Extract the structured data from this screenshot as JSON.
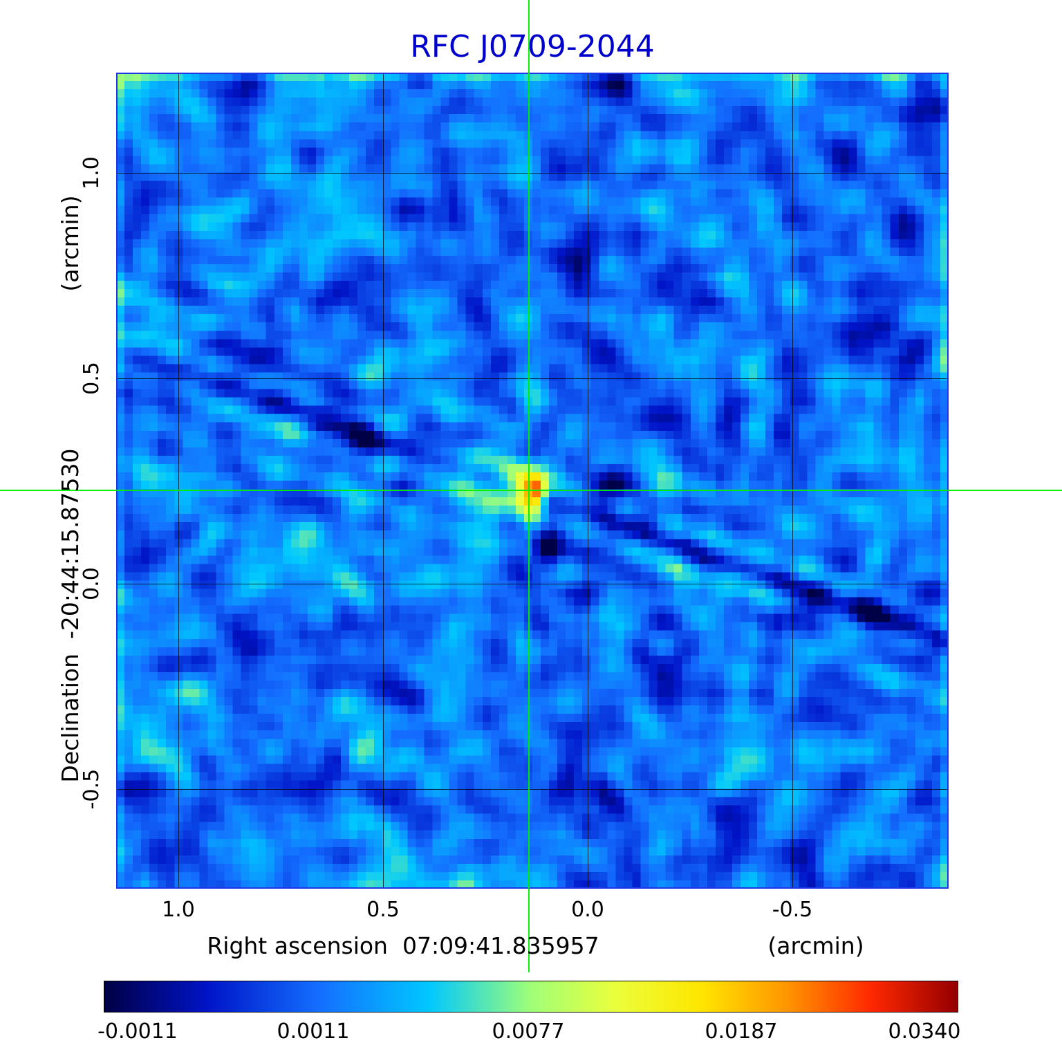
{
  "title": "RFC J0709-2044",
  "colors": {
    "title": "#0000cc",
    "crosshair": "#00ee00",
    "grid": "#000000",
    "frame": "#1e35e8",
    "background": "#ffffff",
    "text": "#000000"
  },
  "x_axis": {
    "label": "Right ascension  07:09:41.835957",
    "unit": "(arcmin)",
    "ticks": [
      "1.0",
      "0.5",
      "0.0",
      "-0.5"
    ]
  },
  "y_axis": {
    "label": "Declination  -20:44:15.87530",
    "unit": "(arcmin)",
    "ticks": [
      "1.0",
      "0.5",
      "0.0",
      "-0.5"
    ]
  },
  "colorbar": {
    "tick_labels": [
      "-0.0011",
      "0.0011",
      "0.0077",
      "0.0187",
      "0.0340"
    ]
  },
  "chart_data": {
    "type": "heatmap",
    "title": "RFC J0709-2044",
    "xlabel": "Right ascension 07:09:41.835957 (arcmin)",
    "ylabel": "Declination -20:44:15.87530 (arcmin)",
    "x_ticks": [
      1.0,
      0.5,
      0.0,
      -0.5
    ],
    "y_ticks": [
      1.0,
      0.5,
      0.0,
      -0.5
    ],
    "x_range_arcmin": [
      1.15,
      -0.88
    ],
    "y_range_arcmin": [
      -0.74,
      1.25
    ],
    "grid": true,
    "legend": "colorbar-bottom",
    "colorbar_ticks": [
      -0.0011,
      0.0011,
      0.0077,
      0.0187,
      0.034
    ],
    "value_min": -0.0011,
    "value_max": 0.034,
    "peak_source": {
      "ra_offset_arcmin": 0.14,
      "dec_offset_arcmin": 0.23,
      "peak_value": 0.034
    },
    "crosshair_arcmin": {
      "x": 0.14,
      "y": 0.23
    },
    "description": "VLBI radio map: blue noise background, bright compact source at crosshair with yellow/red core, diagonal sidelobe streaks and dark negative bowl below the source",
    "colormap_stops": [
      [
        0.0,
        0,
        0,
        70
      ],
      [
        0.12,
        0,
        20,
        200
      ],
      [
        0.25,
        20,
        110,
        255
      ],
      [
        0.38,
        0,
        200,
        255
      ],
      [
        0.5,
        160,
        255,
        120
      ],
      [
        0.6,
        235,
        255,
        60
      ],
      [
        0.7,
        255,
        230,
        0
      ],
      [
        0.8,
        255,
        150,
        0
      ],
      [
        0.9,
        255,
        40,
        0
      ],
      [
        1.0,
        150,
        0,
        0
      ]
    ],
    "render": {
      "seed": 20441,
      "grid_nx": 100,
      "grid_ny": 98,
      "source_cell_x": 49.6,
      "source_cell_y": 50.2,
      "background_t": 0.26,
      "t_scale": 0.17,
      "noise_amp": 2.6,
      "coarse_amp": 0.35,
      "edge_boost": 0.45,
      "source": {
        "amp": 3.4,
        "sx": 1.6,
        "sy": 2.6,
        "core_amp": 1.7,
        "core_sx": 0.8,
        "core_sy": 1.2
      },
      "dark_blob": {
        "amp": -1.5,
        "ox": 1.8,
        "oy": 5.0,
        "sx": 1.3,
        "sy": 2.4
      },
      "streaks": [
        {
          "ux": 0.944,
          "uy": 0.33,
          "type": "fringe",
          "amp": -0.55,
          "freq": 1.3,
          "decay": 7
        },
        {
          "ux": 0.944,
          "uy": 0.33,
          "type": "dark-right",
          "amp": -0.55,
          "width2": 2.5,
          "onset": 8,
          "soft": 5
        },
        {
          "ux": 0.252,
          "uy": 0.968,
          "type": "line",
          "amp": -0.38,
          "width2": 3.2
        },
        {
          "ux": -0.215,
          "uy": 0.977,
          "type": "line",
          "amp": -0.3,
          "width2": 3.2
        }
      ]
    }
  }
}
